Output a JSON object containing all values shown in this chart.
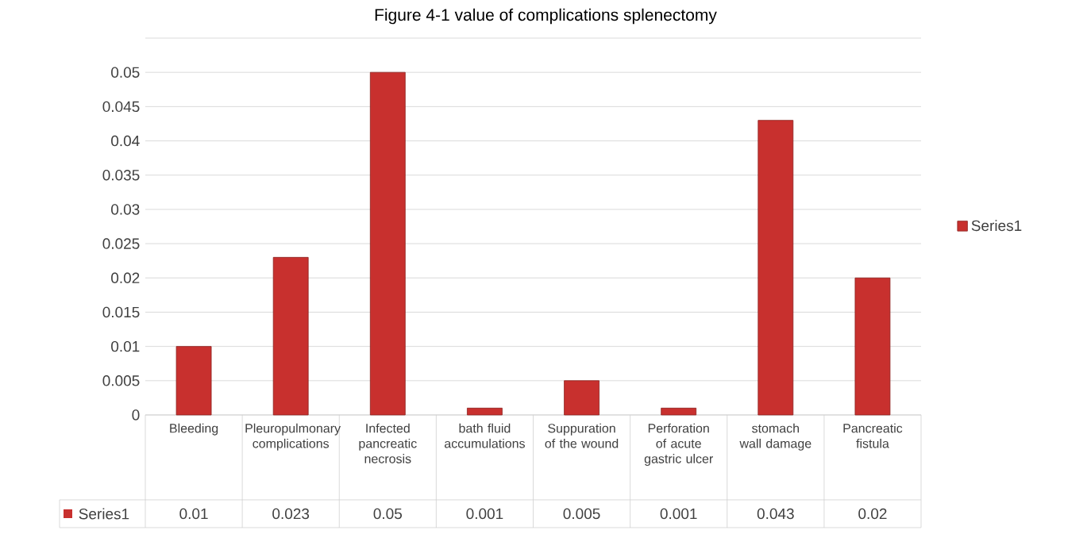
{
  "chart_data": {
    "type": "bar",
    "title": "Figure 4-1 value of complications splenectomy",
    "categories": [
      "Bleeding",
      "Pleuropulmonary complications",
      "Infected pancreatic necrosis",
      "bath fluid accumulations",
      "Suppuration of the wound",
      "Perforation of acute gastric ulcer",
      "stomach wall damage",
      "Pancreatic fistula"
    ],
    "series": [
      {
        "name": "Series1",
        "color": "#c8302e",
        "values": [
          0.01,
          0.023,
          0.05,
          0.001,
          0.005,
          0.001,
          0.043,
          0.02
        ]
      }
    ],
    "ylim": [
      0,
      0.055
    ],
    "yticks": [
      0,
      0.005,
      0.01,
      0.015,
      0.02,
      0.025,
      0.03,
      0.035,
      0.04,
      0.045,
      0.05,
      {
        "value": 0.055,
        "label": null
      }
    ],
    "grid": "y",
    "legend": "right",
    "data_labels": true
  }
}
